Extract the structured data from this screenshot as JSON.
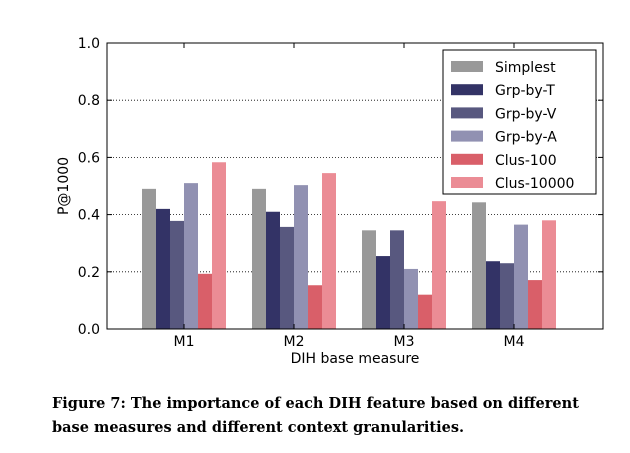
{
  "chart_data": {
    "type": "bar",
    "xlabel": "DIH base measure",
    "ylabel": "P@1000",
    "ylim": [
      0,
      1.0
    ],
    "yticks": [
      "0.0",
      "0.2",
      "0.4",
      "0.6",
      "0.8",
      "1.0"
    ],
    "grid": "horizontal dotted",
    "legend_position": "top-right",
    "categories": [
      "M1",
      "M2",
      "M3",
      "M4"
    ],
    "series": [
      {
        "name": "Simplest",
        "color": "#999999",
        "values": [
          0.49,
          0.49,
          0.345,
          0.443
        ]
      },
      {
        "name": "Grp-by-T",
        "color": "#333366",
        "values": [
          0.42,
          0.41,
          0.255,
          0.237
        ]
      },
      {
        "name": "Grp-by-V",
        "color": "#58587f",
        "values": [
          0.378,
          0.357,
          0.345,
          0.23
        ]
      },
      {
        "name": "Grp-by-A",
        "color": "#9191b2",
        "values": [
          0.51,
          0.503,
          0.21,
          0.365
        ]
      },
      {
        "name": "Clus-100",
        "color": "#d95f69",
        "values": [
          0.193,
          0.153,
          0.12,
          0.171
        ]
      },
      {
        "name": "Clus-10000",
        "color": "#eb8c95",
        "values": [
          0.583,
          0.545,
          0.447,
          0.38
        ]
      }
    ]
  },
  "caption": {
    "line1": "Figure 7: The importance of each DIH feature based on different",
    "line2": "base measures and different context granularities."
  }
}
